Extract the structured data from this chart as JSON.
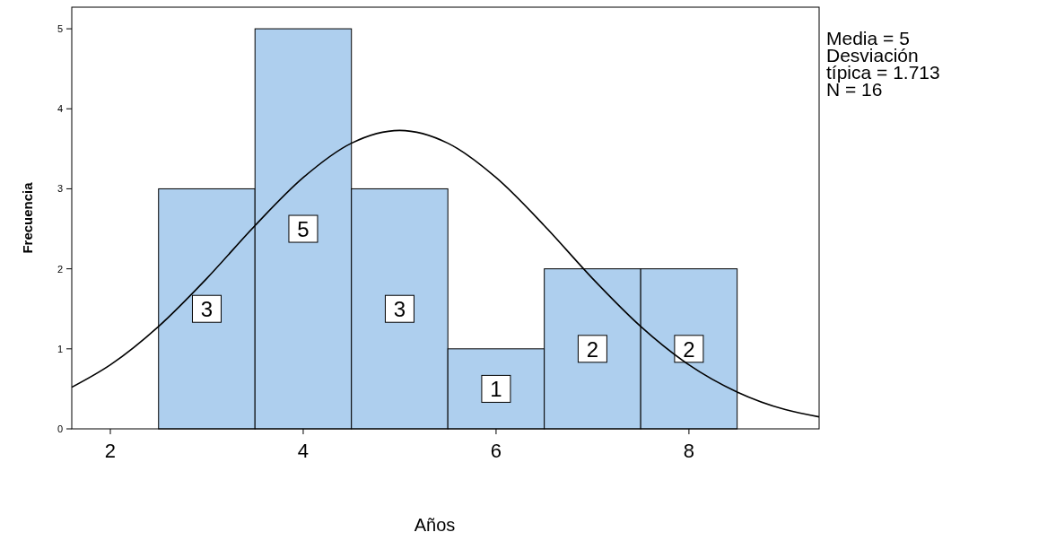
{
  "chart_data": {
    "type": "histogram",
    "xlabel": "Años",
    "ylabel": "Frecuencia",
    "bins": [
      2.5,
      3.5,
      4.5,
      5.5,
      6.5,
      7.5,
      8.5
    ],
    "values": [
      3,
      5,
      3,
      1,
      2,
      2
    ],
    "color": "#aecfee",
    "value_labels": [
      "3",
      "5",
      "3",
      "1",
      "2",
      "2"
    ],
    "series": [
      {
        "type": "line",
        "color": "#000000",
        "x": [
          1.6,
          2,
          2.5,
          3,
          3.5,
          4,
          4.5,
          5,
          5.5,
          6,
          6.5,
          7,
          7.5,
          8,
          8.5,
          9,
          9.35
        ],
        "values": [
          0.52,
          0.8,
          1.28,
          1.88,
          2.54,
          3.14,
          3.57,
          3.73,
          3.57,
          3.14,
          2.54,
          1.88,
          1.28,
          0.8,
          0.46,
          0.24,
          0.15
        ]
      }
    ],
    "xlim": [
      1.6,
      9.35
    ],
    "xticks": [
      2,
      4,
      6,
      8
    ],
    "ylim": [
      0,
      5.27
    ],
    "yticks": [
      0,
      1,
      2,
      3,
      4,
      5
    ],
    "annotations": [
      "Media = 5",
      "Desviación",
      "típica = 1.713",
      "N = 16"
    ]
  }
}
